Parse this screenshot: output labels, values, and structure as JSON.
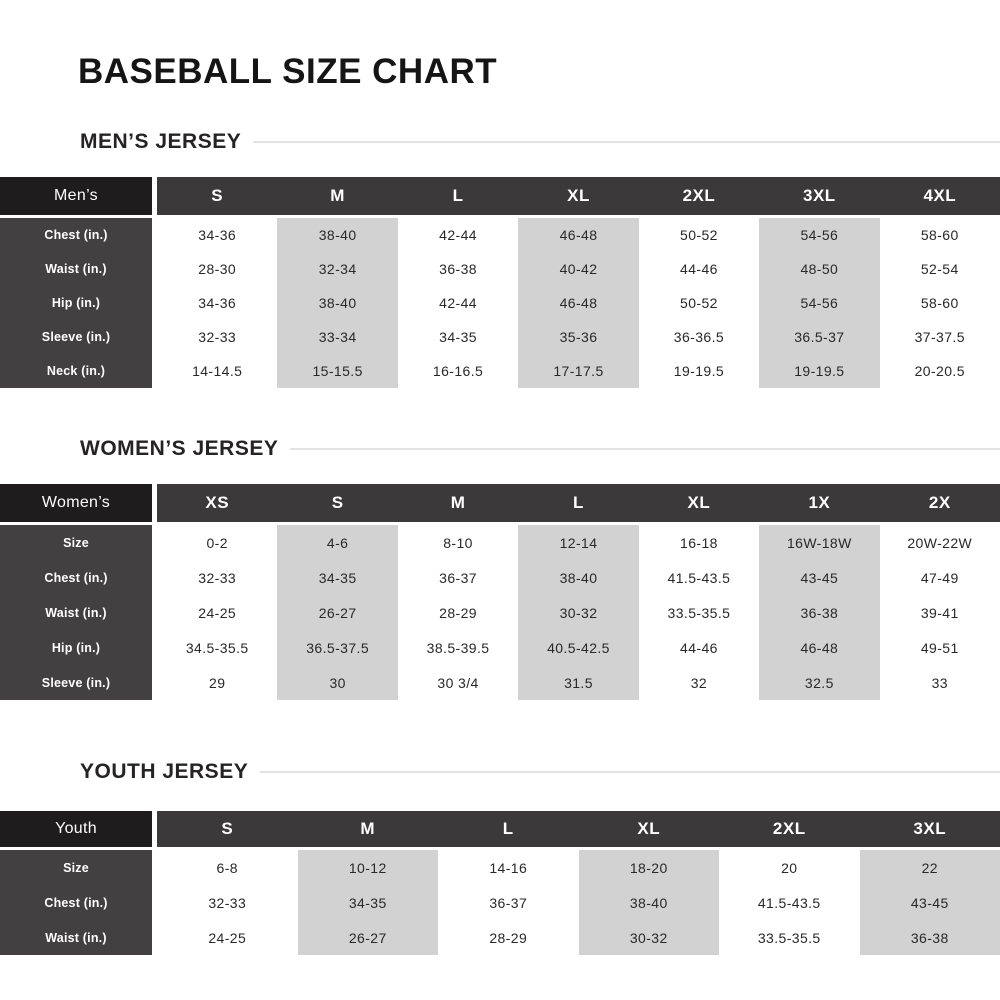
{
  "page": {
    "title": "BASEBALL SIZE CHART"
  },
  "colors": {
    "corner_bg": "#1e1c1d",
    "header_bg": "#3b3939",
    "row_label_bg": "#434041",
    "shaded_column_bg": "#d2d2d2",
    "heading_rule": "#e3e3e3",
    "body_text": "#2a2829"
  },
  "chart_data": [
    {
      "type": "table",
      "title": "MEN’S JERSEY",
      "corner_label": "Men’s",
      "columns": [
        "S",
        "M",
        "L",
        "XL",
        "2XL",
        "3XL",
        "4XL"
      ],
      "shaded_columns": [
        1,
        3,
        5
      ],
      "rows": [
        {
          "label": "Chest (in.)",
          "values": [
            "34-36",
            "38-40",
            "42-44",
            "46-48",
            "50-52",
            "54-56",
            "58-60"
          ]
        },
        {
          "label": "Waist (in.)",
          "values": [
            "28-30",
            "32-34",
            "36-38",
            "40-42",
            "44-46",
            "48-50",
            "52-54"
          ]
        },
        {
          "label": "Hip (in.)",
          "values": [
            "34-36",
            "38-40",
            "42-44",
            "46-48",
            "50-52",
            "54-56",
            "58-60"
          ]
        },
        {
          "label": "Sleeve (in.)",
          "values": [
            "32-33",
            "33-34",
            "34-35",
            "35-36",
            "36-36.5",
            "36.5-37",
            "37-37.5"
          ]
        },
        {
          "label": "Neck (in.)",
          "values": [
            "14-14.5",
            "15-15.5",
            "16-16.5",
            "17-17.5",
            "19-19.5",
            "19-19.5",
            "20-20.5"
          ]
        }
      ]
    },
    {
      "type": "table",
      "title": "WOMEN’S JERSEY",
      "corner_label": "Women’s",
      "columns": [
        "XS",
        "S",
        "M",
        "L",
        "XL",
        "1X",
        "2X"
      ],
      "shaded_columns": [
        1,
        3,
        5
      ],
      "rows": [
        {
          "label": "Size",
          "values": [
            "0-2",
            "4-6",
            "8-10",
            "12-14",
            "16-18",
            "16W-18W",
            "20W-22W"
          ]
        },
        {
          "label": "Chest (in.)",
          "values": [
            "32-33",
            "34-35",
            "36-37",
            "38-40",
            "41.5-43.5",
            "43-45",
            "47-49"
          ]
        },
        {
          "label": "Waist (in.)",
          "values": [
            "24-25",
            "26-27",
            "28-29",
            "30-32",
            "33.5-35.5",
            "36-38",
            "39-41"
          ]
        },
        {
          "label": "Hip (in.)",
          "values": [
            "34.5-35.5",
            "36.5-37.5",
            "38.5-39.5",
            "40.5-42.5",
            "44-46",
            "46-48",
            "49-51"
          ]
        },
        {
          "label": "Sleeve (in.)",
          "values": [
            "29",
            "30",
            "30 3/4",
            "31.5",
            "32",
            "32.5",
            "33"
          ]
        }
      ]
    },
    {
      "type": "table",
      "title": "YOUTH JERSEY",
      "corner_label": "Youth",
      "columns": [
        "S",
        "M",
        "L",
        "XL",
        "2XL",
        "3XL"
      ],
      "shaded_columns": [
        1,
        3,
        5
      ],
      "rows": [
        {
          "label": "Size",
          "values": [
            "6-8",
            "10-12",
            "14-16",
            "18-20",
            "20",
            "22"
          ]
        },
        {
          "label": "Chest (in.)",
          "values": [
            "32-33",
            "34-35",
            "36-37",
            "38-40",
            "41.5-43.5",
            "43-45"
          ]
        },
        {
          "label": "Waist (in.)",
          "values": [
            "24-25",
            "26-27",
            "28-29",
            "30-32",
            "33.5-35.5",
            "36-38"
          ]
        }
      ]
    }
  ]
}
